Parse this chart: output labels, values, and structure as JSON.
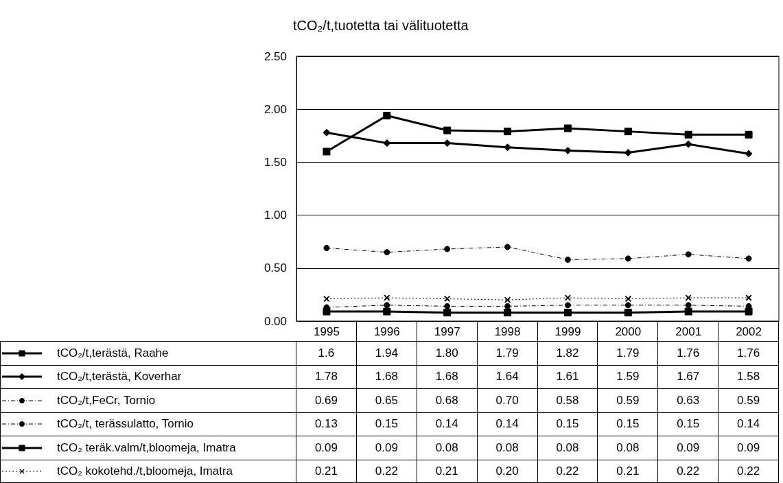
{
  "chart_data": {
    "type": "line",
    "title": "tCO₂/t,tuotetta tai välituotetta",
    "categories": [
      "1995",
      "1996",
      "1997",
      "1998",
      "1999",
      "2000",
      "2001",
      "2002"
    ],
    "series": [
      {
        "name": "tCO₂/t,terästä, Raahe",
        "color": "#000000",
        "marker": "square",
        "line_style": "solid",
        "values": [
          1.6,
          1.94,
          1.8,
          1.79,
          1.82,
          1.79,
          1.76,
          1.76
        ],
        "value_labels": [
          "1.6",
          "1.94",
          "1.80",
          "1.79",
          "1.82",
          "1.79",
          "1.76",
          "1.76"
        ]
      },
      {
        "name": "tCO₂/t,terästä, Koverhar",
        "color": "#000000",
        "marker": "diamond",
        "line_style": "solid",
        "values": [
          1.78,
          1.68,
          1.68,
          1.64,
          1.61,
          1.59,
          1.67,
          1.58
        ],
        "value_labels": [
          "1.78",
          "1.68",
          "1.68",
          "1.64",
          "1.61",
          "1.59",
          "1.67",
          "1.58"
        ]
      },
      {
        "name": "tCO₂/t,FeCr, Tornio",
        "color": "#000000",
        "marker": "circle",
        "line_style": "dashed",
        "values": [
          0.69,
          0.65,
          0.68,
          0.7,
          0.58,
          0.59,
          0.63,
          0.59
        ],
        "value_labels": [
          "0.69",
          "0.65",
          "0.68",
          "0.70",
          "0.58",
          "0.59",
          "0.63",
          "0.59"
        ]
      },
      {
        "name": "tCO₂/t, terässulatto, Tornio",
        "color": "#000000",
        "marker": "circle",
        "line_style": "dashed",
        "values": [
          0.13,
          0.15,
          0.14,
          0.14,
          0.15,
          0.15,
          0.15,
          0.14
        ],
        "value_labels": [
          "0.13",
          "0.15",
          "0.14",
          "0.14",
          "0.15",
          "0.15",
          "0.15",
          "0.14"
        ]
      },
      {
        "name": "tCO₂ teräk.valm/t,bloomeja, Imatra",
        "color": "#000000",
        "marker": "square",
        "line_style": "solid",
        "values": [
          0.09,
          0.09,
          0.08,
          0.08,
          0.08,
          0.08,
          0.09,
          0.09
        ],
        "value_labels": [
          "0.09",
          "0.09",
          "0.08",
          "0.08",
          "0.08",
          "0.08",
          "0.09",
          "0.09"
        ]
      },
      {
        "name": "tCO₂ kokotehd./t,bloomeja, Imatra",
        "color": "#000000",
        "marker": "cross",
        "line_style": "dotted",
        "values": [
          0.21,
          0.22,
          0.21,
          0.2,
          0.22,
          0.21,
          0.22,
          0.22
        ],
        "value_labels": [
          "0.21",
          "0.22",
          "0.21",
          "0.20",
          "0.22",
          "0.21",
          "0.22",
          "0.22"
        ]
      }
    ],
    "ylim": [
      0,
      2.5
    ],
    "yticks": [
      {
        "value": 0,
        "label": "0.00"
      },
      {
        "value": 0.5,
        "label": "0.50"
      },
      {
        "value": 1,
        "label": "1.00"
      },
      {
        "value": 1.5,
        "label": "1.50"
      },
      {
        "value": 2,
        "label": "2.00"
      },
      {
        "value": 2.5,
        "label": "2.50"
      }
    ],
    "grid": "y",
    "legend": "bottom"
  }
}
